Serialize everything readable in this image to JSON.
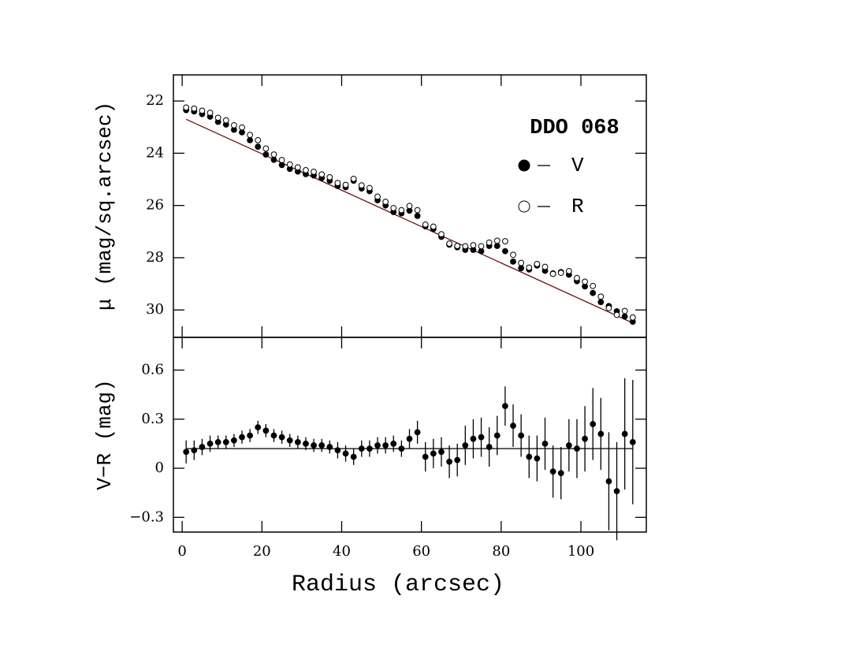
{
  "chart_data": [
    {
      "type": "scatter",
      "y_label": "μ (mag/sq.arcsec)",
      "annotation": "DDO 068",
      "x": [
        1,
        3,
        5,
        7,
        9,
        11,
        13,
        15,
        17,
        19,
        21,
        23,
        25,
        27,
        29,
        31,
        33,
        35,
        37,
        39,
        41,
        43,
        45,
        47,
        49,
        51,
        53,
        55,
        57,
        59,
        61,
        63,
        65,
        67,
        69,
        71,
        73,
        75,
        77,
        79,
        81,
        83,
        85,
        87,
        89,
        91,
        93,
        95,
        97,
        99,
        101,
        103,
        105,
        107,
        109,
        111,
        113
      ],
      "series": [
        {
          "name": "V",
          "color": "#000000",
          "marker": "filled",
          "values": [
            22.35,
            22.4,
            22.5,
            22.6,
            22.8,
            22.9,
            23.1,
            23.2,
            23.5,
            23.75,
            24.05,
            24.25,
            24.45,
            24.6,
            24.7,
            24.8,
            24.85,
            24.95,
            25.05,
            25.25,
            25.3,
            25.05,
            25.35,
            25.45,
            25.8,
            26.0,
            26.25,
            26.3,
            26.2,
            26.4,
            26.8,
            26.9,
            27.2,
            27.5,
            27.6,
            27.7,
            27.7,
            27.75,
            27.55,
            27.55,
            27.75,
            28.15,
            28.4,
            28.45,
            28.3,
            28.5,
            28.6,
            28.55,
            28.65,
            28.9,
            29.1,
            29.35,
            29.7,
            29.85,
            30.05,
            30.25,
            30.45
          ]
        },
        {
          "name": "R",
          "color": "#000000",
          "marker": "open",
          "values": [
            22.25,
            22.29,
            22.37,
            22.45,
            22.64,
            22.74,
            22.93,
            23.01,
            23.3,
            23.5,
            23.82,
            24.05,
            24.26,
            24.43,
            24.54,
            24.65,
            24.71,
            24.81,
            24.92,
            25.14,
            25.21,
            24.98,
            25.23,
            25.33,
            25.66,
            25.86,
            26.1,
            26.18,
            26.02,
            26.18,
            26.73,
            26.81,
            27.1,
            27.46,
            27.55,
            27.56,
            27.52,
            27.56,
            27.42,
            27.35,
            27.37,
            27.89,
            28.2,
            28.38,
            28.24,
            28.35,
            28.62,
            28.58,
            28.51,
            28.78,
            28.92,
            29.08,
            29.49,
            29.93,
            30.19,
            30.04,
            30.29
          ]
        }
      ],
      "fit": {
        "color": "#6b0f0f",
        "x": [
          1,
          113
        ],
        "values": [
          22.7,
          30.5
        ]
      },
      "legend": true,
      "xlim": [
        -2.2,
        116.4
      ],
      "ylim": [
        21,
        31.05
      ],
      "y_inverted": true,
      "xticks": [
        0,
        20,
        40,
        60,
        80,
        100
      ],
      "xtick_labels": false,
      "yticks": [
        22,
        24,
        26,
        28,
        30
      ]
    },
    {
      "type": "scatter",
      "y_label": "V−R (mag)",
      "x_label": "Radius (arcsec)",
      "x": [
        1,
        3,
        5,
        7,
        9,
        11,
        13,
        15,
        17,
        19,
        21,
        23,
        25,
        27,
        29,
        31,
        33,
        35,
        37,
        39,
        41,
        43,
        45,
        47,
        49,
        51,
        53,
        55,
        57,
        59,
        61,
        63,
        65,
        67,
        69,
        71,
        73,
        75,
        77,
        79,
        81,
        83,
        85,
        87,
        89,
        91,
        93,
        95,
        97,
        99,
        101,
        103,
        105,
        107,
        109,
        111,
        113
      ],
      "series": [
        {
          "color": "#000000",
          "marker": "filled",
          "values": [
            0.1,
            0.11,
            0.13,
            0.15,
            0.16,
            0.16,
            0.17,
            0.19,
            0.2,
            0.25,
            0.23,
            0.2,
            0.19,
            0.17,
            0.16,
            0.15,
            0.14,
            0.14,
            0.13,
            0.11,
            0.09,
            0.07,
            0.12,
            0.12,
            0.14,
            0.14,
            0.15,
            0.12,
            0.18,
            0.22,
            0.07,
            0.09,
            0.1,
            0.04,
            0.05,
            0.14,
            0.18,
            0.19,
            0.13,
            0.2,
            0.38,
            0.26,
            0.2,
            0.07,
            0.06,
            0.15,
            -0.02,
            -0.03,
            0.14,
            0.12,
            0.18,
            0.27,
            0.21,
            -0.08,
            -0.14,
            0.21,
            0.16
          ],
          "errors": [
            0.07,
            0.06,
            0.05,
            0.05,
            0.04,
            0.04,
            0.04,
            0.04,
            0.04,
            0.04,
            0.04,
            0.04,
            0.04,
            0.04,
            0.04,
            0.04,
            0.04,
            0.04,
            0.04,
            0.05,
            0.05,
            0.05,
            0.05,
            0.05,
            0.05,
            0.05,
            0.05,
            0.05,
            0.06,
            0.07,
            0.09,
            0.09,
            0.09,
            0.1,
            0.1,
            0.12,
            0.12,
            0.12,
            0.12,
            0.12,
            0.12,
            0.13,
            0.13,
            0.13,
            0.14,
            0.16,
            0.16,
            0.16,
            0.16,
            0.18,
            0.2,
            0.22,
            0.22,
            0.3,
            0.3,
            0.34,
            0.38
          ]
        }
      ],
      "fit": {
        "color": "#000000",
        "x": [
          1,
          113
        ],
        "values": [
          0.12,
          0.12
        ]
      },
      "xlim": [
        -2.2,
        116.4
      ],
      "ylim": [
        -0.39,
        0.8
      ],
      "xticks": [
        0,
        20,
        40,
        60,
        80,
        100
      ],
      "xtick_labels": true,
      "yticks": [
        0.6,
        0.3,
        0,
        {
          "value": -0.3,
          "label": "−0.3"
        }
      ]
    }
  ]
}
